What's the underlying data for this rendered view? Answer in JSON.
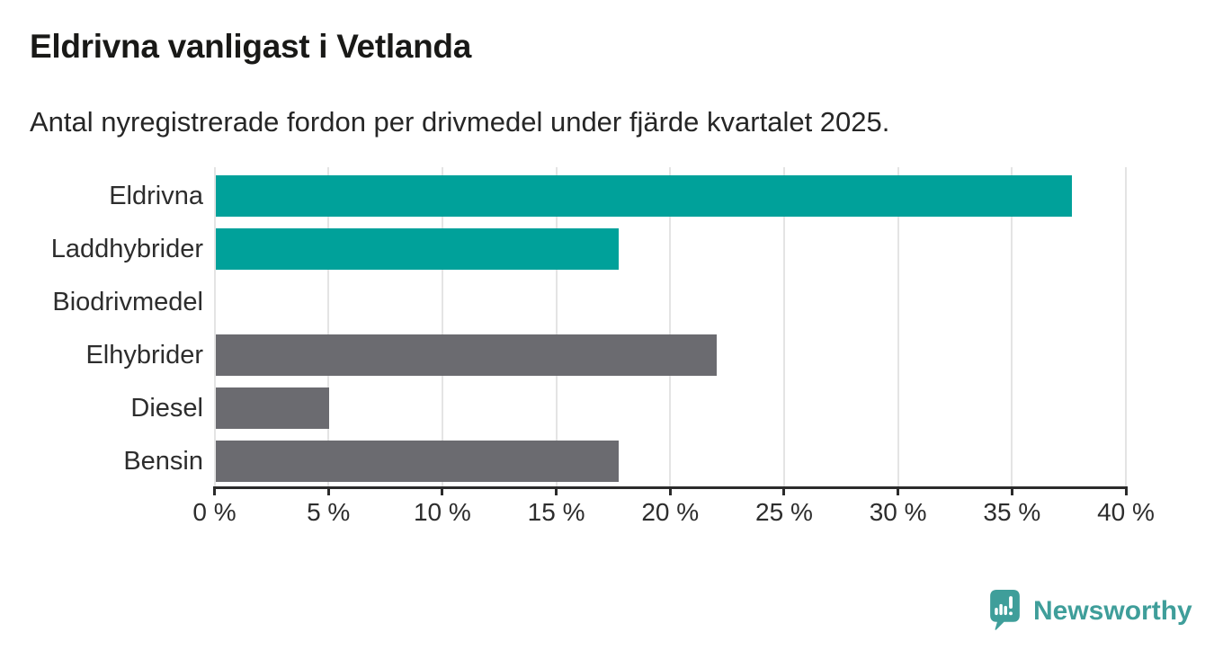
{
  "chart_data": {
    "type": "bar",
    "orientation": "horizontal",
    "title": "Eldrivna vanligast i Vetlanda",
    "subtitle": "Antal nyregistrerade fordon per drivmedel under fjärde kvartalet 2025.",
    "categories": [
      "Eldrivna",
      "Laddhybrider",
      "Biodrivmedel",
      "Elhybrider",
      "Diesel",
      "Bensin"
    ],
    "values": [
      37.6,
      17.7,
      0,
      22,
      5,
      17.7
    ],
    "unit": "%",
    "xlim": [
      0,
      40
    ],
    "x_tick_step": 5,
    "x_tick_labels": [
      "0 %",
      "5 %",
      "10 %",
      "15 %",
      "20 %",
      "25 %",
      "30 %",
      "35 %",
      "40 %"
    ],
    "grid": true,
    "legend": "none",
    "bar_colors": [
      "#00a19a",
      "#00a19a",
      "#6b6b70",
      "#6b6b70",
      "#6b6b70",
      "#6b6b70"
    ],
    "colors": {
      "highlight_teal": "#00a19a",
      "default_gray": "#6b6b70",
      "gridline": "#e4e4e4",
      "axis": "#2b2b2b",
      "label_text": "#2d2d2d",
      "title_text": "#191917"
    }
  },
  "footer": {
    "logo_text": "Newsworthy",
    "logo_color": "#3f9e9a"
  }
}
